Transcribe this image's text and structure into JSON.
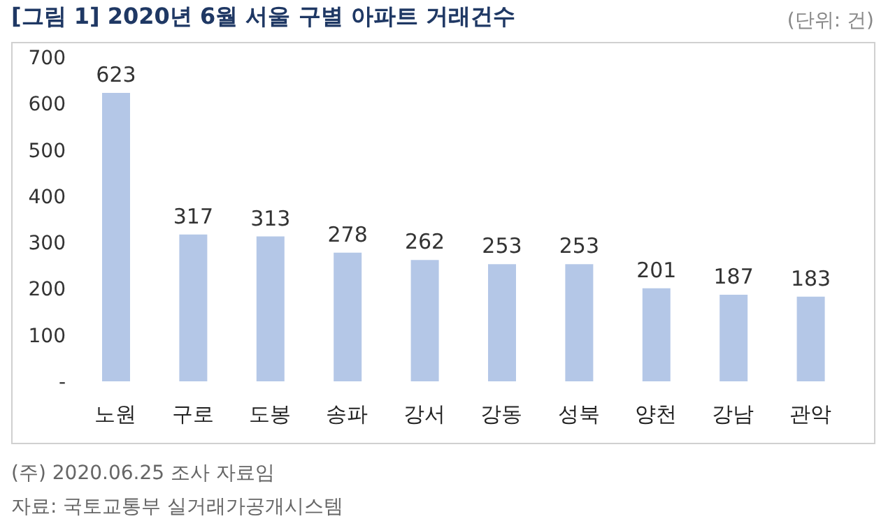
{
  "chart_data": {
    "type": "bar",
    "title": "[그림 1] 2020년 6월 서울 구별 아파트 거래건수",
    "subtitle": "(단위: 건)",
    "categories": [
      "노원",
      "구로",
      "도봉",
      "송파",
      "강서",
      "강동",
      "성북",
      "양천",
      "강남",
      "관악"
    ],
    "values": [
      623,
      317,
      313,
      278,
      262,
      253,
      253,
      201,
      187,
      183
    ],
    "color": "#b4c7e7",
    "ylim": [
      0,
      700
    ],
    "yticks": [
      {
        "value": 0,
        "label": "-"
      },
      100,
      200,
      300,
      400,
      500,
      600,
      700
    ],
    "grid": false,
    "data_labels": true,
    "annotations": [
      "(주) 2020.06.25 조사 자료임",
      "자료: 국토교통부 실거래가공개시스템"
    ]
  }
}
